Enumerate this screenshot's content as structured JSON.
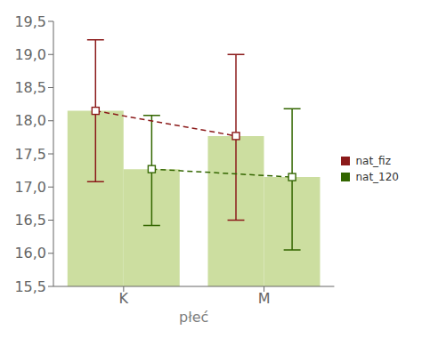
{
  "chart_data": {
    "type": "bar",
    "categories": [
      "K",
      "M"
    ],
    "xlabel": "płeć",
    "color": "#ccdea0",
    "series": [
      {
        "name": "nat_fiz",
        "color": "#8b1a1a",
        "values": [
          18.15,
          17.77
        ],
        "lower": [
          17.08,
          16.5
        ],
        "upper": [
          19.22,
          19.0
        ],
        "marker": "square",
        "line_style": "dashed"
      },
      {
        "name": "nat_120",
        "color": "#336600",
        "values": [
          17.27,
          17.15
        ],
        "lower": [
          16.42,
          16.05
        ],
        "upper": [
          18.08,
          18.18
        ],
        "marker": "square",
        "line_style": "dashed"
      }
    ],
    "ylim": [
      15.5,
      19.5
    ],
    "yticks": [
      {
        "value": 15.5,
        "label": "15,5"
      },
      {
        "value": 16.0,
        "label": "16,0"
      },
      {
        "value": 16.5,
        "label": "16,5"
      },
      {
        "value": 17.0,
        "label": "17,0"
      },
      {
        "value": 17.5,
        "label": "17,5"
      },
      {
        "value": 18.0,
        "label": "18,0"
      },
      {
        "value": 18.5,
        "label": "18,5"
      },
      {
        "value": 19.0,
        "label": "19,0"
      },
      {
        "value": 19.5,
        "label": "19,5"
      }
    ],
    "grid": false,
    "legend": "right"
  }
}
